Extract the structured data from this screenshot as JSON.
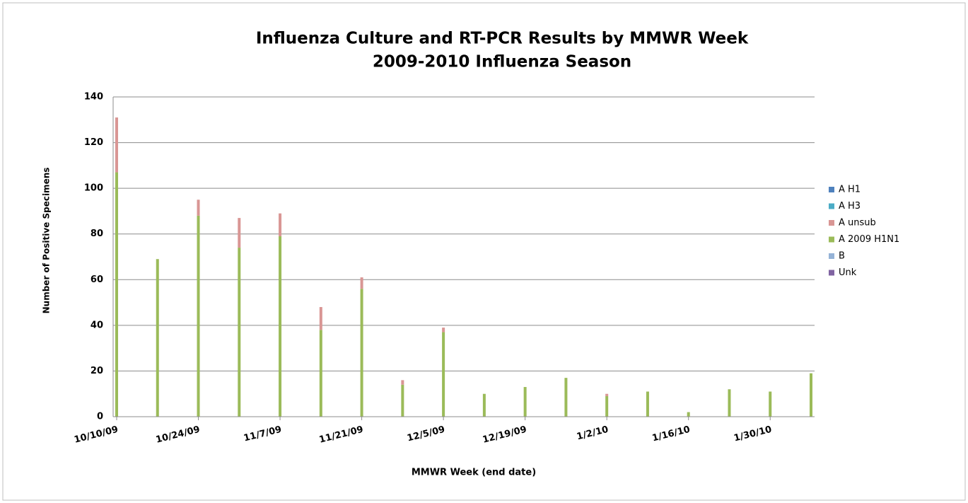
{
  "chart_data": {
    "type": "stacked-bar",
    "title": "Influenza Culture and RT-PCR Results by MMWR Week",
    "subtitle": "2009-2010 Influenza Season",
    "y_label": "Number of Positive Specimens",
    "x_label": "MMWR Week (end date)",
    "categories": [
      "10/10/09",
      null,
      "10/24/09",
      null,
      "11/7/09",
      null,
      "11/21/09",
      null,
      "12/5/09",
      null,
      "12/19/09",
      null,
      "1/2/10",
      null,
      "1/16/10",
      null,
      "1/30/10",
      null
    ],
    "series": [
      {
        "name": "A H1",
        "color": "#4f81bd",
        "values": [
          0,
          0,
          0,
          0,
          0,
          0,
          0,
          0,
          0,
          0,
          0,
          0,
          0,
          0,
          0,
          0,
          0,
          0
        ]
      },
      {
        "name": "A H3",
        "color": "#4bacc6",
        "values": [
          0,
          0,
          0,
          0,
          0,
          0,
          0,
          0,
          0,
          0,
          0,
          0,
          0,
          0,
          0,
          0,
          0,
          0
        ]
      },
      {
        "name": "A unsub",
        "color": "#d99694",
        "values": [
          24,
          0,
          7,
          13,
          10,
          10,
          5,
          2,
          2,
          0,
          0,
          0,
          1,
          0,
          0,
          0,
          0,
          0
        ]
      },
      {
        "name": "A 2009 H1N1",
        "color": "#9bbb59",
        "values": [
          107,
          69,
          88,
          74,
          79,
          38,
          56,
          14,
          37,
          10,
          13,
          17,
          9,
          11,
          2,
          12,
          11,
          19
        ]
      },
      {
        "name": "B",
        "color": "#95b3d7",
        "values": [
          0,
          0,
          0,
          0,
          0,
          0,
          0,
          0,
          0,
          0,
          0,
          0,
          0,
          0,
          0,
          0,
          0,
          0
        ]
      },
      {
        "name": "Unk",
        "color": "#8064a2",
        "values": [
          0,
          0,
          0,
          0,
          0,
          0,
          0,
          0,
          0,
          0,
          0,
          0,
          0,
          0,
          0,
          0,
          0,
          0
        ]
      }
    ],
    "ylim": [
      0,
      140
    ],
    "yticks": [
      0,
      20,
      40,
      60,
      80,
      100,
      120,
      140
    ],
    "grid": true,
    "legend": "right"
  }
}
